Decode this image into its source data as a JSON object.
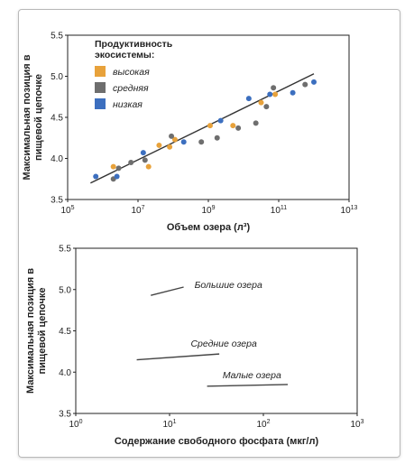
{
  "chart_data": [
    {
      "type": "scatter",
      "xlabel": "Объем озера (л³)",
      "ylabel_lines": [
        "Максимальная позиция в",
        "пищевой цепочке"
      ],
      "x_scale": "log",
      "xlim_exp": [
        5,
        13
      ],
      "x_tick_exps": [
        5,
        7,
        9,
        11,
        13
      ],
      "x_tick_base": "10",
      "ylim": [
        3.5,
        5.5
      ],
      "y_ticks": [
        "3.5",
        "4.0",
        "4.5",
        "5.0",
        "5.5"
      ],
      "legend": {
        "title_lines": [
          "Продуктивность",
          "экосистемы:"
        ],
        "placement": "top-left"
      },
      "series": [
        {
          "name": "высокая",
          "color": "#e8a23b",
          "points": [
            [
              6.3,
              3.9
            ],
            [
              7.3,
              3.9
            ],
            [
              7.6,
              4.16
            ],
            [
              7.9,
              4.14
            ],
            [
              8.05,
              4.23
            ],
            [
              9.05,
              4.4
            ],
            [
              9.7,
              4.4
            ],
            [
              10.5,
              4.68
            ],
            [
              10.9,
              4.78
            ]
          ]
        },
        {
          "name": "средняя",
          "color": "#6e6e6e",
          "points": [
            [
              6.3,
              3.75
            ],
            [
              6.45,
              3.88
            ],
            [
              6.8,
              3.95
            ],
            [
              7.2,
              3.98
            ],
            [
              7.95,
              4.27
            ],
            [
              8.8,
              4.2
            ],
            [
              9.25,
              4.25
            ],
            [
              9.85,
              4.37
            ],
            [
              10.35,
              4.43
            ],
            [
              10.65,
              4.63
            ],
            [
              10.85,
              4.86
            ],
            [
              11.75,
              4.9
            ]
          ]
        },
        {
          "name": "низкая",
          "color": "#3c6fbf",
          "points": [
            [
              5.8,
              3.78
            ],
            [
              6.4,
              3.78
            ],
            [
              7.15,
              4.07
            ],
            [
              8.3,
              4.2
            ],
            [
              9.35,
              4.46
            ],
            [
              10.15,
              4.73
            ],
            [
              10.75,
              4.78
            ],
            [
              11.4,
              4.8
            ],
            [
              12.0,
              4.93
            ]
          ]
        }
      ],
      "trendline": {
        "x": [
          5.65,
          12.0
        ],
        "y": [
          3.7,
          5.03
        ],
        "color": "#333333"
      }
    },
    {
      "type": "line",
      "xlabel": "Содержание свободного фосфата (мкг/л)",
      "ylabel_lines": [
        "Максимальная позиция в",
        "пищевой цепочке"
      ],
      "x_scale": "log",
      "xlim_exp": [
        0,
        3
      ],
      "x_tick_exps": [
        0,
        1,
        2,
        3
      ],
      "x_tick_base": "10",
      "ylim": [
        3.5,
        5.5
      ],
      "y_ticks": [
        "3.5",
        "4.0",
        "4.5",
        "5.0",
        "5.5"
      ],
      "series": [
        {
          "name": "Большие озера",
          "x": [
            0.8,
            1.15
          ],
          "y": [
            4.93,
            5.03
          ]
        },
        {
          "name": "Средние озера",
          "x": [
            0.65,
            1.53
          ],
          "y": [
            4.15,
            4.22
          ]
        },
        {
          "name": "Малые озера",
          "x": [
            1.4,
            2.26
          ],
          "y": [
            3.83,
            3.85
          ]
        }
      ],
      "line_color": "#444444"
    }
  ]
}
